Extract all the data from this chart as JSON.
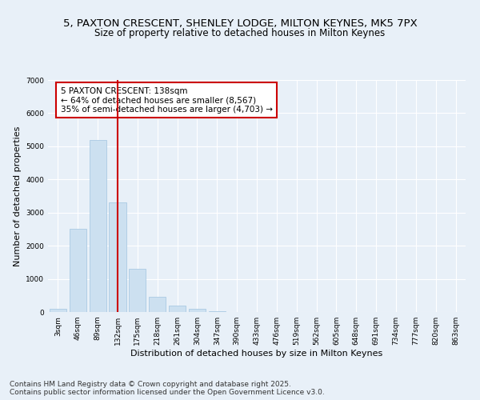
{
  "title_line1": "5, PAXTON CRESCENT, SHENLEY LODGE, MILTON KEYNES, MK5 7PX",
  "title_line2": "Size of property relative to detached houses in Milton Keynes",
  "xlabel": "Distribution of detached houses by size in Milton Keynes",
  "ylabel": "Number of detached properties",
  "categories": [
    "3sqm",
    "46sqm",
    "89sqm",
    "132sqm",
    "175sqm",
    "218sqm",
    "261sqm",
    "304sqm",
    "347sqm",
    "390sqm",
    "433sqm",
    "476sqm",
    "519sqm",
    "562sqm",
    "605sqm",
    "648sqm",
    "691sqm",
    "734sqm",
    "777sqm",
    "820sqm",
    "863sqm"
  ],
  "values": [
    100,
    2500,
    5200,
    3300,
    1300,
    450,
    200,
    100,
    30,
    5,
    2,
    1,
    0,
    0,
    0,
    0,
    0,
    0,
    0,
    0,
    0
  ],
  "bar_color": "#cce0f0",
  "bar_edge_color": "#a0c4e0",
  "vline_x_index": 3,
  "vline_color": "#cc0000",
  "annotation_text": "5 PAXTON CRESCENT: 138sqm\n← 64% of detached houses are smaller (8,567)\n35% of semi-detached houses are larger (4,703) →",
  "annotation_box_color": "#cc0000",
  "ylim": [
    0,
    7000
  ],
  "yticks": [
    0,
    1000,
    2000,
    3000,
    4000,
    5000,
    6000,
    7000
  ],
  "bg_color": "#e8f0f8",
  "plot_bg_color": "#e8f0f8",
  "grid_color": "#ffffff",
  "footer_text": "Contains HM Land Registry data © Crown copyright and database right 2025.\nContains public sector information licensed under the Open Government Licence v3.0.",
  "title_fontsize": 9.5,
  "subtitle_fontsize": 8.5,
  "axis_label_fontsize": 8,
  "tick_fontsize": 6.5,
  "annotation_fontsize": 7.5,
  "footer_fontsize": 6.5
}
